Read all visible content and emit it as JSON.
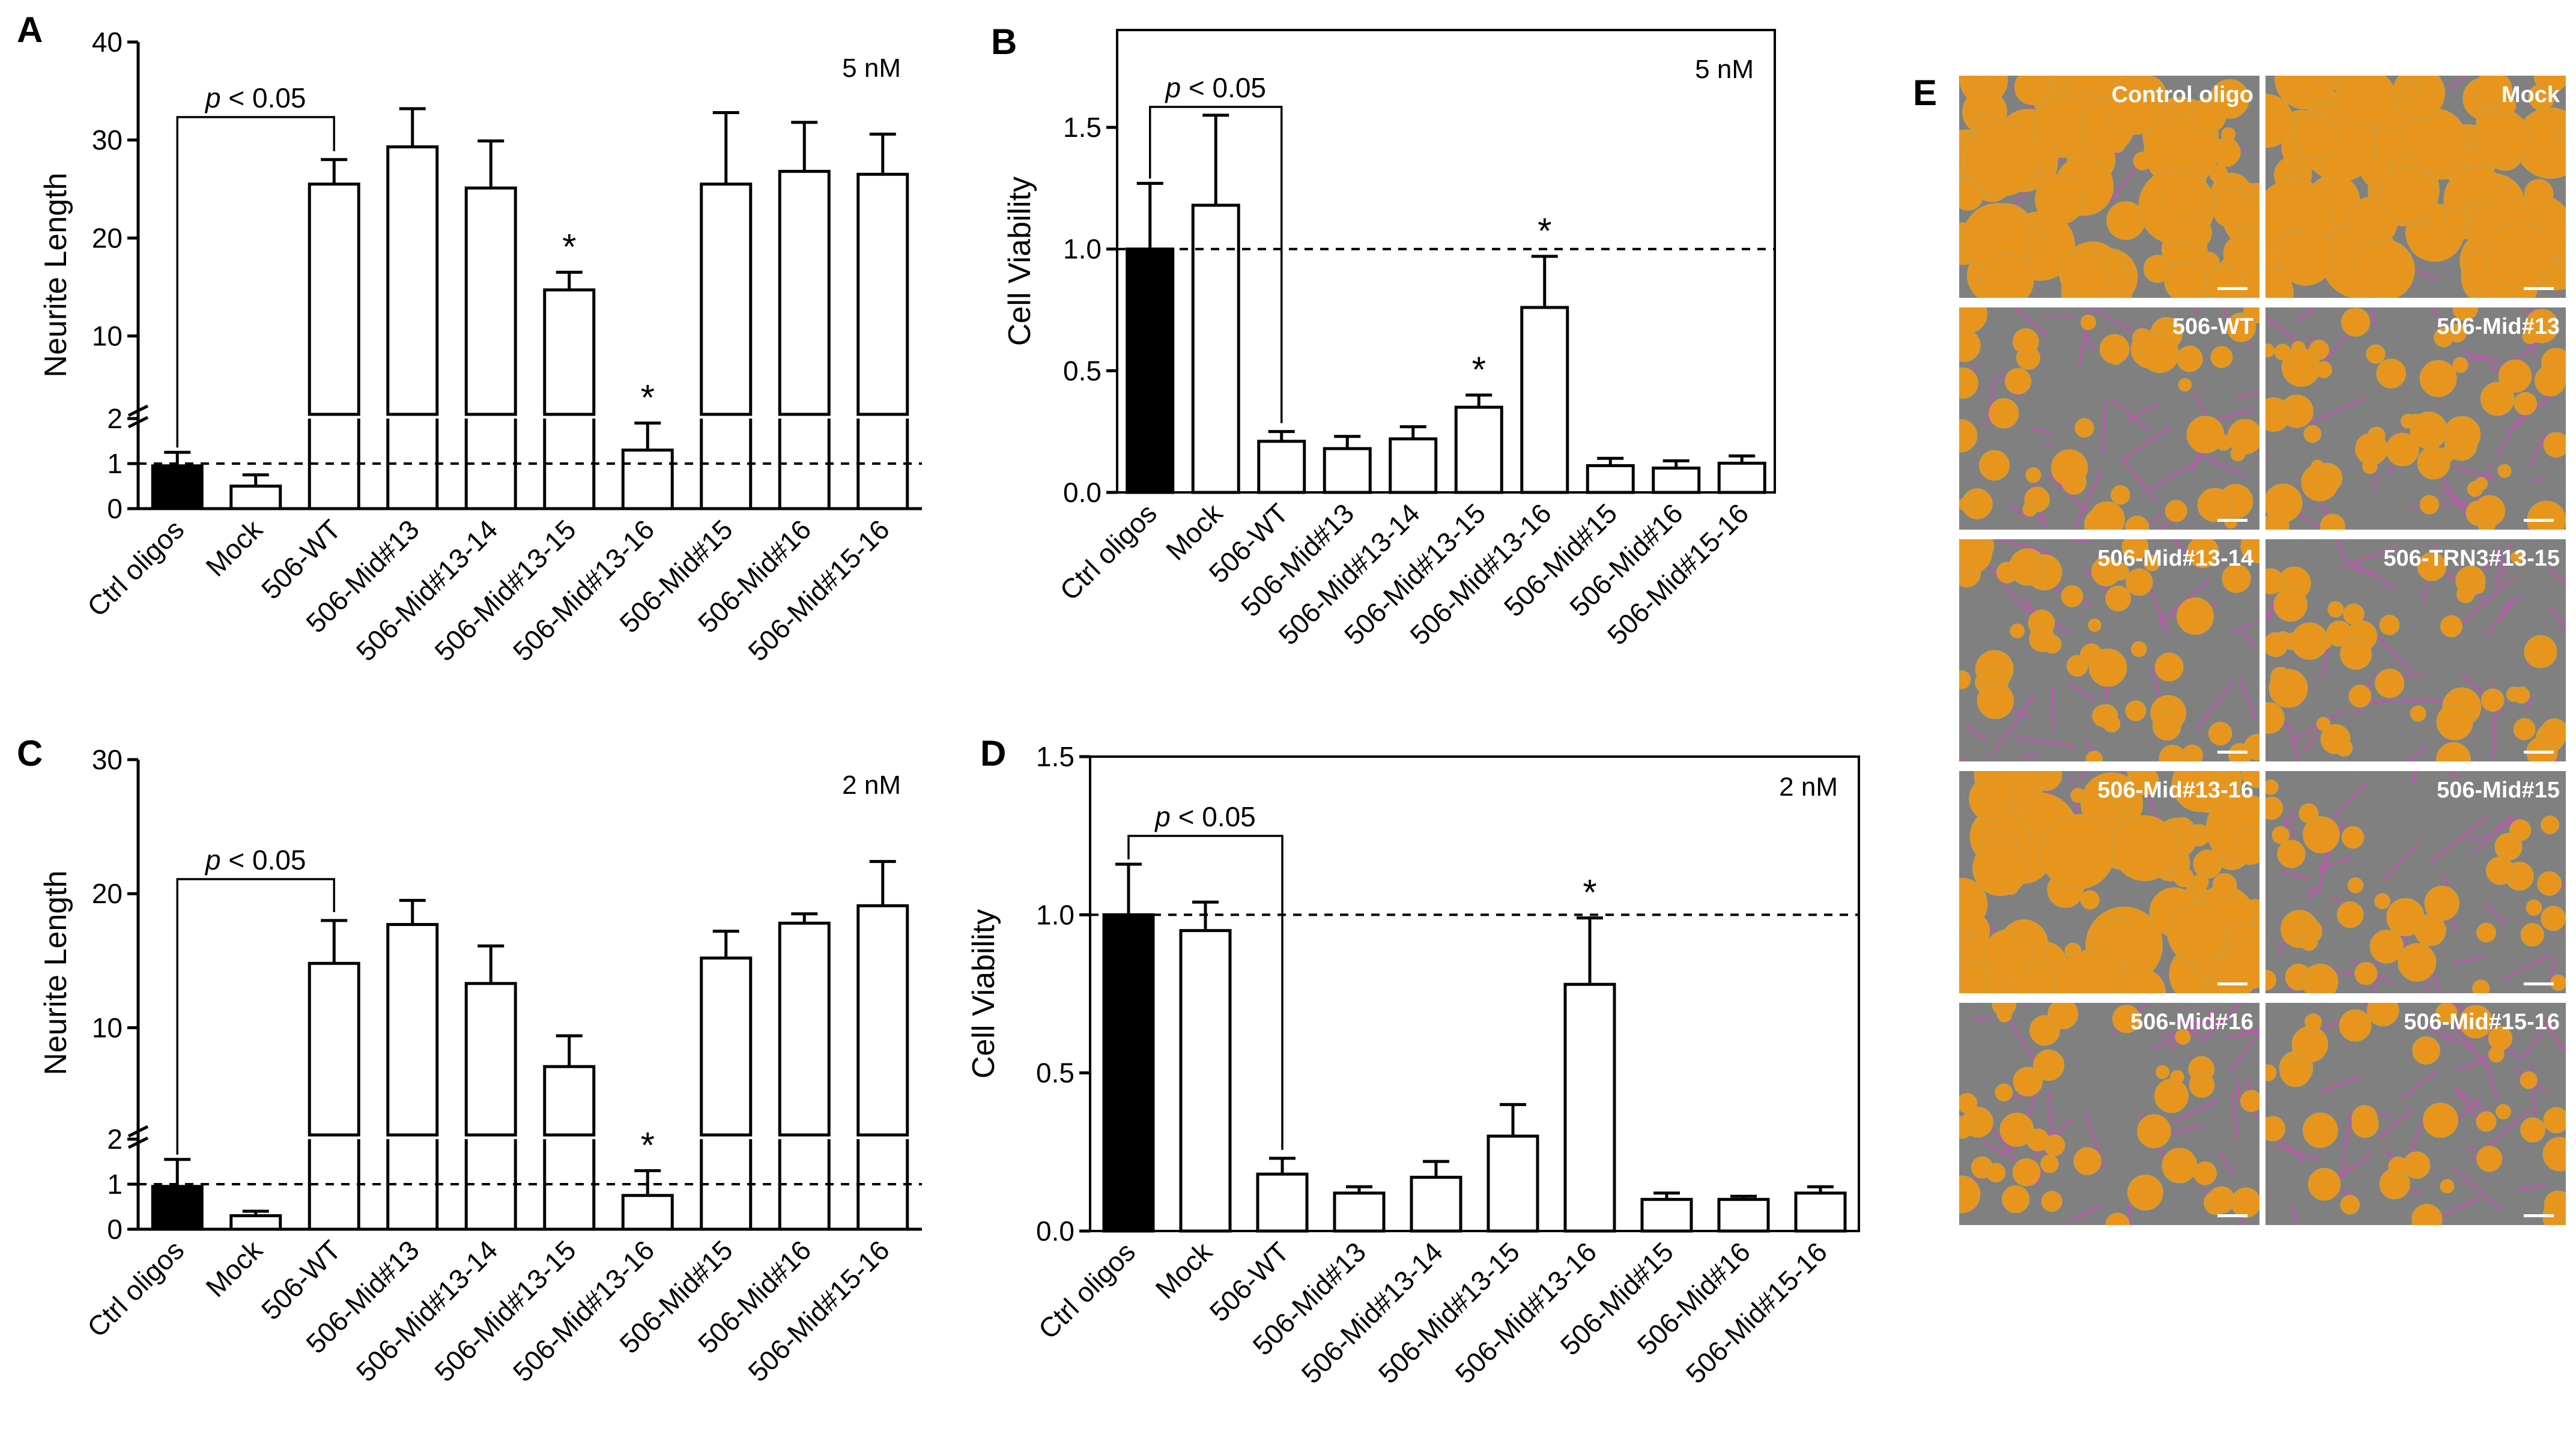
{
  "chart_data": [
    {
      "panel": "A",
      "type": "bar",
      "ylabel": "Neurite Length",
      "annotation": "5 nM",
      "y_upper_ticks": [
        10,
        20,
        30,
        40
      ],
      "y_lower_ticks": [
        0,
        1,
        2
      ],
      "ylim_upper": [
        2,
        40
      ],
      "ylim_lower": [
        0,
        2
      ],
      "reference_line": 1,
      "categories": [
        "Ctrl oligos",
        "Mock",
        "506-WT",
        "506-Mid#13",
        "506-Mid#13-14",
        "506-Mid#13-15",
        "506-Mid#13-16",
        "506-Mid#15",
        "506-Mid#16",
        "506-Mid#15-16"
      ],
      "values": [
        0.95,
        0.5,
        25.5,
        29.3,
        25.1,
        14.7,
        1.3,
        25.5,
        26.8,
        26.5
      ],
      "errors": [
        0.3,
        0.25,
        2.5,
        3.9,
        4.8,
        1.8,
        0.6,
        7.3,
        5.0,
        4.1
      ],
      "colors": [
        "#000000",
        "#ffffff",
        "#ffffff",
        "#ffffff",
        "#ffffff",
        "#ffffff",
        "#ffffff",
        "#ffffff",
        "#ffffff",
        "#ffffff"
      ],
      "significant": [
        5,
        6
      ],
      "significance_mark": "*",
      "comparison": {
        "from": 0,
        "to": 2,
        "label_p": "p",
        "label_rest": " < 0.05"
      }
    },
    {
      "panel": "B",
      "type": "bar",
      "ylabel": "Cell Viability",
      "annotation": "5 nM",
      "y_ticks": [
        "0.0",
        "0.5",
        "1.0",
        "1.5"
      ],
      "ylim": [
        0,
        1.9
      ],
      "reference_line": 1.0,
      "categories": [
        "Ctrl oligos",
        "Mock",
        "506-WT",
        "506-Mid#13",
        "506-Mid#13-14",
        "506-Mid#13-15",
        "506-Mid#13-16",
        "506-Mid#15",
        "506-Mid#16",
        "506-Mid#15-16"
      ],
      "values": [
        1.0,
        1.18,
        0.21,
        0.18,
        0.22,
        0.35,
        0.76,
        0.11,
        0.1,
        0.12
      ],
      "errors": [
        0.27,
        0.37,
        0.04,
        0.05,
        0.05,
        0.05,
        0.21,
        0.03,
        0.03,
        0.03
      ],
      "colors": [
        "#000000",
        "#ffffff",
        "#ffffff",
        "#ffffff",
        "#ffffff",
        "#ffffff",
        "#ffffff",
        "#ffffff",
        "#ffffff",
        "#ffffff"
      ],
      "significant": [
        5,
        6
      ],
      "significance_mark": "*",
      "comparison": {
        "from": 0,
        "to": 2,
        "label_p": "p",
        "label_rest": " < 0.05"
      }
    },
    {
      "panel": "C",
      "type": "bar",
      "ylabel": "Neurite Length",
      "annotation": "2 nM",
      "y_upper_ticks": [
        10,
        20,
        30
      ],
      "y_lower_ticks": [
        0,
        1,
        2
      ],
      "ylim_upper": [
        2,
        30
      ],
      "ylim_lower": [
        0,
        2
      ],
      "reference_line": 1,
      "categories": [
        "Ctrl oligos",
        "Mock",
        "506-WT",
        "506-Mid#13",
        "506-Mid#13-14",
        "506-Mid#13-15",
        "506-Mid#13-16",
        "506-Mid#15",
        "506-Mid#16",
        "506-Mid#15-16"
      ],
      "values": [
        0.95,
        0.3,
        14.8,
        17.7,
        13.3,
        7.1,
        0.75,
        15.2,
        17.8,
        19.1
      ],
      "errors": [
        0.6,
        0.1,
        3.2,
        1.8,
        2.8,
        2.3,
        0.55,
        2.0,
        0.7,
        3.3
      ],
      "colors": [
        "#000000",
        "#ffffff",
        "#ffffff",
        "#ffffff",
        "#ffffff",
        "#ffffff",
        "#ffffff",
        "#ffffff",
        "#ffffff",
        "#ffffff"
      ],
      "significant": [
        6
      ],
      "significance_mark": "*",
      "comparison": {
        "from": 0,
        "to": 2,
        "label_p": "p",
        "label_rest": " < 0.05"
      }
    },
    {
      "panel": "D",
      "type": "bar",
      "ylabel": "Cell Viability",
      "annotation": "2 nM",
      "y_ticks": [
        "0.0",
        "0.5",
        "1.0",
        "1.5"
      ],
      "ylim": [
        0,
        1.5
      ],
      "reference_line": 1.0,
      "categories": [
        "Ctrl oligos",
        "Mock",
        "506-WT",
        "506-Mid#13",
        "506-Mid#13-14",
        "506-Mid#13-15",
        "506-Mid#13-16",
        "506-Mid#15",
        "506-Mid#16",
        "506-Mid#15-16"
      ],
      "values": [
        1.0,
        0.95,
        0.18,
        0.12,
        0.17,
        0.3,
        0.78,
        0.1,
        0.1,
        0.12
      ],
      "errors": [
        0.16,
        0.09,
        0.05,
        0.02,
        0.05,
        0.1,
        0.21,
        0.02,
        0.01,
        0.02
      ],
      "colors": [
        "#000000",
        "#ffffff",
        "#ffffff",
        "#ffffff",
        "#ffffff",
        "#ffffff",
        "#ffffff",
        "#ffffff",
        "#ffffff",
        "#ffffff"
      ],
      "significant": [
        6
      ],
      "significance_mark": "*",
      "comparison": {
        "from": 0,
        "to": 2,
        "label_p": "p",
        "label_rest": " < 0.05"
      }
    }
  ],
  "panel_e": {
    "letter": "E",
    "tiles": [
      {
        "label": "Control oligo",
        "orange_density": 0.75
      },
      {
        "label": "Mock",
        "orange_density": 0.75
      },
      {
        "label": "506-WT",
        "orange_density": 0.35
      },
      {
        "label": "506-Mid#13",
        "orange_density": 0.45
      },
      {
        "label": "506-Mid#13-14",
        "orange_density": 0.4
      },
      {
        "label": "506-TRN3#13-15",
        "orange_density": 0.35
      },
      {
        "label": "506-Mid#13-16",
        "orange_density": 0.7
      },
      {
        "label": "506-Mid#15",
        "orange_density": 0.3
      },
      {
        "label": "506-Mid#16",
        "orange_density": 0.3
      },
      {
        "label": "506-Mid#15-16",
        "orange_density": 0.25
      }
    ],
    "colors": {
      "background": "#808080",
      "cells": "#e8951e",
      "neurites": "#e040c8",
      "label": "#ffffff"
    }
  }
}
